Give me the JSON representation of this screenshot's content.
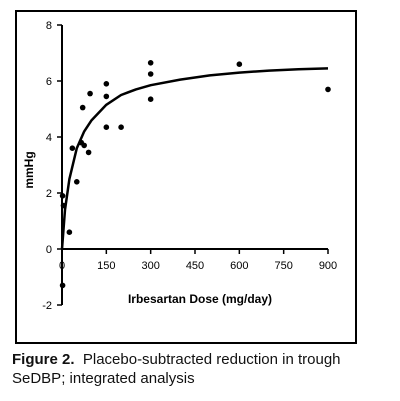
{
  "chart_data": {
    "type": "scatter",
    "title": "",
    "xlabel": "Irbesartan Dose (mg/day)",
    "ylabel": "mmHg",
    "xlim": [
      0,
      900
    ],
    "ylim": [
      -2,
      8
    ],
    "xticks": [
      0,
      150,
      300,
      450,
      600,
      750,
      900
    ],
    "yticks": [
      -2,
      0,
      2,
      4,
      6,
      8
    ],
    "grid": false,
    "legend": "none",
    "series": [
      {
        "kind": "points",
        "points": [
          {
            "x": 2,
            "y": -1.3
          },
          {
            "x": 2,
            "y": 1.9
          },
          {
            "x": 5,
            "y": 1.55
          },
          {
            "x": 25,
            "y": 0.6
          },
          {
            "x": 35,
            "y": 3.6
          },
          {
            "x": 50,
            "y": 2.4
          },
          {
            "x": 65,
            "y": 3.8
          },
          {
            "x": 70,
            "y": 5.05
          },
          {
            "x": 75,
            "y": 3.7
          },
          {
            "x": 90,
            "y": 3.45
          },
          {
            "x": 95,
            "y": 5.55
          },
          {
            "x": 150,
            "y": 5.9
          },
          {
            "x": 150,
            "y": 5.45
          },
          {
            "x": 150,
            "y": 4.35
          },
          {
            "x": 200,
            "y": 4.35
          },
          {
            "x": 300,
            "y": 6.65
          },
          {
            "x": 300,
            "y": 6.25
          },
          {
            "x": 300,
            "y": 5.35
          },
          {
            "x": 600,
            "y": 6.6
          },
          {
            "x": 900,
            "y": 5.7
          }
        ]
      },
      {
        "kind": "fit-curve",
        "points": [
          {
            "x": 0,
            "y": 0.0
          },
          {
            "x": 10,
            "y": 1.4
          },
          {
            "x": 25,
            "y": 2.5
          },
          {
            "x": 50,
            "y": 3.6
          },
          {
            "x": 75,
            "y": 4.2
          },
          {
            "x": 100,
            "y": 4.6
          },
          {
            "x": 150,
            "y": 5.15
          },
          {
            "x": 200,
            "y": 5.5
          },
          {
            "x": 250,
            "y": 5.7
          },
          {
            "x": 300,
            "y": 5.85
          },
          {
            "x": 400,
            "y": 6.05
          },
          {
            "x": 500,
            "y": 6.2
          },
          {
            "x": 600,
            "y": 6.3
          },
          {
            "x": 700,
            "y": 6.37
          },
          {
            "x": 800,
            "y": 6.42
          },
          {
            "x": 900,
            "y": 6.45
          }
        ]
      }
    ]
  },
  "caption": {
    "label": "Figure 2.",
    "text": "Placebo-subtracted reduction in trough SeDBP; integrated analysis"
  },
  "colors": {
    "ink": "#000000",
    "background": "#ffffff"
  }
}
